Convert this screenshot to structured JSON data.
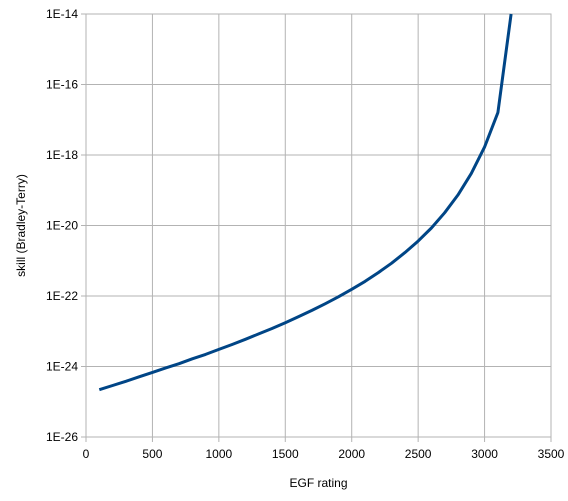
{
  "chart_data": {
    "type": "line",
    "title": "",
    "xlabel": "EGF rating",
    "ylabel": "skill (Bradley-Terry)",
    "x_scale": "linear",
    "y_scale": "log",
    "xlim": [
      0,
      3500
    ],
    "ylim": [
      1e-26,
      1e-14
    ],
    "x_ticks": [
      0,
      500,
      1000,
      1500,
      2000,
      2500,
      3000,
      3500
    ],
    "x_tick_labels": [
      "0",
      "500",
      "1000",
      "1500",
      "2000",
      "2500",
      "3000",
      "3500"
    ],
    "y_ticks": [
      1e-26,
      1e-24,
      1e-22,
      1e-20,
      1e-18,
      1e-16,
      1e-14
    ],
    "y_tick_labels": [
      "1E-26",
      "1E-24",
      "1E-22",
      "1E-20",
      "1E-18",
      "1E-16",
      "1E-14"
    ],
    "grid": true,
    "legend": "none",
    "series": [
      {
        "color": "#004586",
        "x": [
          100,
          200,
          300,
          400,
          500,
          600,
          700,
          800,
          900,
          1000,
          1100,
          1200,
          1300,
          1400,
          1500,
          1600,
          1700,
          1800,
          1900,
          2000,
          2100,
          2200,
          2300,
          2400,
          2500,
          2600,
          2700,
          2800,
          2900,
          3000,
          3100,
          3200
        ],
        "y": [
          2.2e-25,
          2.9e-25,
          3.8e-25,
          5.1e-25,
          6.8e-25,
          9.1e-25,
          1.2e-24,
          1.65e-24,
          2.2e-24,
          3.05e-24,
          4.2e-24,
          5.9e-24,
          8.4e-24,
          1.2e-23,
          1.75e-23,
          2.6e-23,
          3.9e-23,
          6e-23,
          9.5e-23,
          1.55e-22,
          2.6e-22,
          4.6e-22,
          8.5e-22,
          1.7e-21,
          3.6e-21,
          8.5e-21,
          2.3e-20,
          7.4e-20,
          3e-19,
          1.7e-18,
          1.6e-17,
          1e-14
        ]
      }
    ]
  }
}
